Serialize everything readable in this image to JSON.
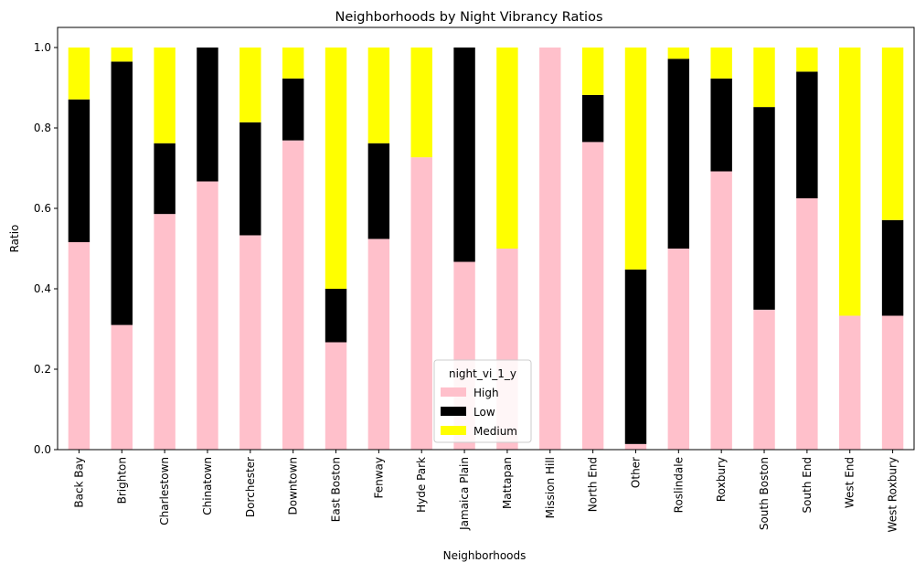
{
  "chart_data": {
    "type": "bar",
    "stacked": true,
    "title": "Neighborhoods by Night Vibrancy Ratios",
    "xlabel": "Neighborhoods",
    "ylabel": "Ratio",
    "ylim": [
      0,
      1.05
    ],
    "yticks": [
      "0.0",
      "0.2",
      "0.4",
      "0.6",
      "0.8",
      "1.0"
    ],
    "grid": false,
    "legend": {
      "title": "night_vi_1_y",
      "placement": "bottom-center"
    },
    "categories": [
      "Back Bay",
      "Brighton",
      "Charlestown",
      "Chinatown",
      "Dorchester",
      "Downtown",
      "East Boston",
      "Fenway",
      "Hyde Park",
      "Jamaica Plain",
      "Mattapan",
      "Mission Hill",
      "North End",
      "Other",
      "Roslindale",
      "Roxbury",
      "South Boston",
      "South End",
      "West End",
      "West Roxbury"
    ],
    "series": [
      {
        "name": "High",
        "color": "#ffc0cb",
        "values": [
          0.516,
          0.31,
          0.586,
          0.667,
          0.533,
          0.769,
          0.267,
          0.524,
          0.727,
          0.467,
          0.5,
          1.0,
          0.765,
          0.014,
          0.5,
          0.692,
          0.348,
          0.625,
          0.333,
          0.333
        ]
      },
      {
        "name": "Low",
        "color": "#000000",
        "values": [
          0.355,
          0.655,
          0.176,
          0.333,
          0.281,
          0.154,
          0.133,
          0.238,
          0.0,
          0.533,
          0.0,
          0.0,
          0.117,
          0.434,
          0.472,
          0.231,
          0.504,
          0.315,
          0.0,
          0.238
        ]
      },
      {
        "name": "Medium",
        "color": "#ffff00",
        "values": [
          0.129,
          0.035,
          0.238,
          0.0,
          0.186,
          0.077,
          0.6,
          0.238,
          0.273,
          0.0,
          0.5,
          0.0,
          0.118,
          0.552,
          0.028,
          0.077,
          0.148,
          0.06,
          0.667,
          0.429
        ]
      }
    ]
  }
}
